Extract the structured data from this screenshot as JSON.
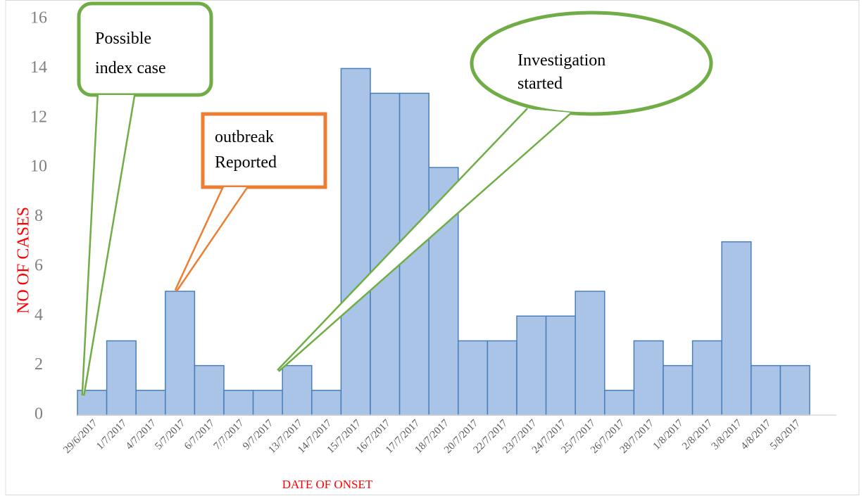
{
  "chart_data": {
    "type": "bar",
    "categories": [
      "29/6/2017",
      "1/7/2017",
      "4/7/2017",
      "5/7/2017",
      "6/7/2017",
      "7/7/2017",
      "9/7/2017",
      "13/7/2017",
      "14/7/2017",
      "15/7/2017",
      "16/7/2017",
      "17/7/2017",
      "18/7/2017",
      "20/7/2017",
      "22/7/2017",
      "23/7/2017",
      "24/7/2017",
      "25/7/2017",
      "26/7/2017",
      "28/7/2017",
      "1/8/2017",
      "2/8/2017",
      "3/8/2017",
      "4/8/2017",
      "5/8/2017"
    ],
    "values": [
      1,
      3,
      1,
      5,
      2,
      1,
      1,
      2,
      1,
      14,
      13,
      13,
      10,
      3,
      3,
      4,
      4,
      5,
      1,
      3,
      2,
      3,
      7,
      2,
      2
    ],
    "color": "#a9c4e6",
    "edge_color": "#4a7ebb",
    "ylim": [
      0,
      16
    ],
    "yticks": [
      0,
      2,
      4,
      6,
      8,
      10,
      12,
      14,
      16
    ],
    "x_label": "DATE  OF ONSET",
    "y_label": "NO  OF CASES",
    "annotations": [
      {
        "lines": [
          "Possible",
          "index case"
        ],
        "color": "#70ad47"
      },
      {
        "lines": [
          "outbreak",
          "Reported"
        ],
        "color": "#ed7d31"
      },
      {
        "lines": [
          "Investigation",
          "started"
        ],
        "color": "#70ad47"
      }
    ]
  }
}
